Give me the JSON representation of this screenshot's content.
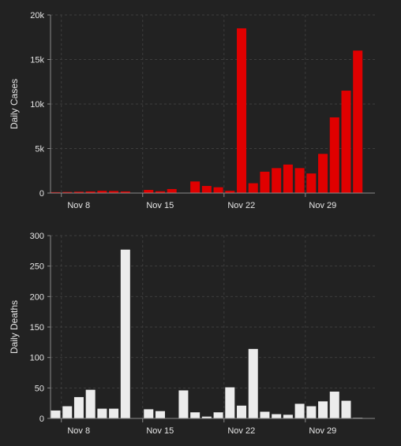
{
  "chart_data": [
    {
      "type": "bar",
      "ylabel": "Daily Cases",
      "ylim": [
        0,
        20000
      ],
      "yticks": [
        0,
        5000,
        10000,
        15000,
        20000
      ],
      "ytick_labels": [
        "0",
        "5k",
        "10k",
        "15k",
        "20k"
      ],
      "xtick_labels": [
        {
          "label": "Nov 8",
          "day": 8
        },
        {
          "label": "Nov 15",
          "day": 15
        },
        {
          "label": "Nov 22",
          "day": 22
        },
        {
          "label": "Nov 29",
          "day": 29
        }
      ],
      "bar_color": "#e00000",
      "grid": true,
      "points": [
        {
          "day": 7,
          "value": 100
        },
        {
          "day": 8,
          "value": 120
        },
        {
          "day": 9,
          "value": 150
        },
        {
          "day": 10,
          "value": 180
        },
        {
          "day": 11,
          "value": 250
        },
        {
          "day": 12,
          "value": 230
        },
        {
          "day": 13,
          "value": 180
        },
        {
          "day": 15,
          "value": 350
        },
        {
          "day": 16,
          "value": 200
        },
        {
          "day": 17,
          "value": 450
        },
        {
          "day": 19,
          "value": 1300
        },
        {
          "day": 20,
          "value": 800
        },
        {
          "day": 21,
          "value": 650
        },
        {
          "day": 22,
          "value": 250
        },
        {
          "day": 23,
          "value": 18500
        },
        {
          "day": 24,
          "value": 1100
        },
        {
          "day": 25,
          "value": 2400
        },
        {
          "day": 26,
          "value": 2800
        },
        {
          "day": 27,
          "value": 3200
        },
        {
          "day": 28,
          "value": 2800
        },
        {
          "day": 29,
          "value": 2200
        },
        {
          "day": 30,
          "value": 4400
        },
        {
          "day": 31,
          "value": 8500
        },
        {
          "day": 32,
          "value": 11500
        },
        {
          "day": 33,
          "value": 16000
        }
      ]
    },
    {
      "type": "bar",
      "ylabel": "Daily Deaths",
      "ylim": [
        0,
        300
      ],
      "yticks": [
        0,
        50,
        100,
        150,
        200,
        250,
        300
      ],
      "ytick_labels": [
        "0",
        "50",
        "100",
        "150",
        "200",
        "250",
        "300"
      ],
      "xtick_labels": [
        {
          "label": "Nov 8",
          "day": 8
        },
        {
          "label": "Nov 15",
          "day": 15
        },
        {
          "label": "Nov 22",
          "day": 22
        },
        {
          "label": "Nov 29",
          "day": 29
        }
      ],
      "bar_color": "#ececec",
      "grid": true,
      "points": [
        {
          "day": 7,
          "value": 13
        },
        {
          "day": 8,
          "value": 20
        },
        {
          "day": 9,
          "value": 35
        },
        {
          "day": 10,
          "value": 47
        },
        {
          "day": 11,
          "value": 16
        },
        {
          "day": 12,
          "value": 16
        },
        {
          "day": 13,
          "value": 277
        },
        {
          "day": 15,
          "value": 15
        },
        {
          "day": 16,
          "value": 12
        },
        {
          "day": 18,
          "value": 46
        },
        {
          "day": 19,
          "value": 10
        },
        {
          "day": 20,
          "value": 3
        },
        {
          "day": 21,
          "value": 10
        },
        {
          "day": 22,
          "value": 51
        },
        {
          "day": 23,
          "value": 21
        },
        {
          "day": 24,
          "value": 114
        },
        {
          "day": 25,
          "value": 11
        },
        {
          "day": 26,
          "value": 7
        },
        {
          "day": 27,
          "value": 6
        },
        {
          "day": 28,
          "value": 24
        },
        {
          "day": 29,
          "value": 20
        },
        {
          "day": 30,
          "value": 28
        },
        {
          "day": 31,
          "value": 44
        },
        {
          "day": 32,
          "value": 29
        },
        {
          "day": 33,
          "value": 1
        }
      ]
    }
  ]
}
